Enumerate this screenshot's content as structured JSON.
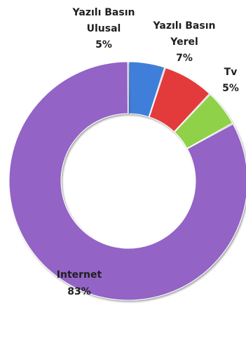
{
  "chart_data": {
    "type": "pie",
    "variant": "donut",
    "categories": [
      "Yazılı Basın Ulusal",
      "Yazılı Basın Yerel",
      "Tv",
      "Internet"
    ],
    "values": [
      5,
      7,
      5,
      83
    ],
    "unit": "%",
    "title": "",
    "legend": "none",
    "slices": [
      {
        "category": "Yazılı Basın Ulusal",
        "label_lines": [
          "Yazılı Basın",
          "Ulusal"
        ],
        "value": 5,
        "value_label": "5%",
        "color": "#3f7fd9"
      },
      {
        "category": "Yazılı Basın Yerel",
        "label_lines": [
          "Yazılı Basın",
          "Yerel"
        ],
        "value": 7,
        "value_label": "7%",
        "color": "#e33b3b"
      },
      {
        "category": "Tv",
        "label_lines": [
          "Tv"
        ],
        "value": 5,
        "value_label": "5%",
        "color": "#8fd14a"
      },
      {
        "category": "Internet",
        "label_lines": [
          "Internet"
        ],
        "value": 83,
        "value_label": "83%",
        "color": "#9364c6"
      }
    ]
  }
}
